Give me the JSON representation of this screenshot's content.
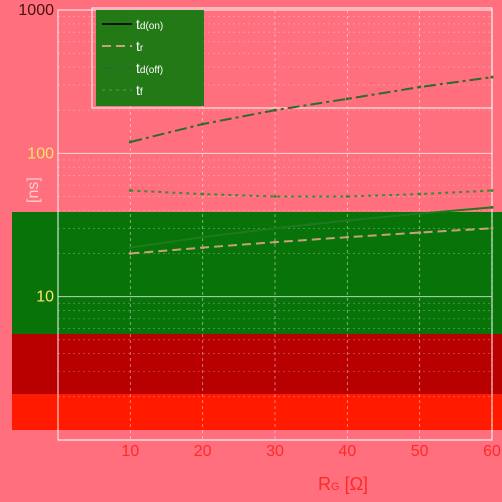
{
  "chart_data": {
    "type": "line",
    "title": "",
    "xlabel": "R",
    "xlabel_sub": "G",
    "xlabel_unit": " [Ω]",
    "ylabel": "[ns]",
    "x_ticks": [
      10,
      20,
      30,
      40,
      50,
      60
    ],
    "x_tick_labels": [
      "10",
      "20",
      "30",
      "40",
      "50",
      "60"
    ],
    "xlim": [
      0,
      60
    ],
    "y_scale": "log",
    "ylim": [
      1,
      1000
    ],
    "y_ticks": [
      1000,
      100,
      10
    ],
    "y_tick_labels": [
      "1000",
      "100",
      "10"
    ],
    "grid": true,
    "legend_position": "top-left",
    "legend_entries": [
      {
        "main": "t",
        "sub": "d(on)"
      },
      {
        "main": "t",
        "sub": "r"
      },
      {
        "main": "t",
        "sub": "d(off)"
      },
      {
        "main": "t",
        "sub": "f"
      }
    ],
    "series": [
      {
        "name": "td(on)",
        "style": "solid",
        "color": "#1e7a1e",
        "x": [
          10,
          20,
          30,
          40,
          50,
          60
        ],
        "y": [
          22,
          26,
          30,
          34,
          38,
          42
        ]
      },
      {
        "name": "tr",
        "style": "dashed",
        "color": "#c9a07a",
        "x": [
          10,
          20,
          30,
          40,
          50,
          60
        ],
        "y": [
          20,
          22,
          24,
          26,
          28,
          30
        ]
      },
      {
        "name": "td(off)",
        "style": "dash-dot",
        "color": "#2b6b2b",
        "x": [
          10,
          20,
          30,
          40,
          50,
          60
        ],
        "y": [
          120,
          160,
          200,
          240,
          290,
          340
        ]
      },
      {
        "name": "tf",
        "style": "dotted",
        "color": "#3a8a3a",
        "x": [
          10,
          20,
          30,
          40,
          50,
          60
        ],
        "y": [
          55,
          52,
          50,
          50,
          52,
          55
        ]
      }
    ],
    "colors": {
      "background": "#ff6f7d",
      "plot_bands": [
        "#087308",
        "#b80000",
        "#ff1a00"
      ],
      "axis_text": "#ff2a2a",
      "grid": "#ffffff"
    }
  }
}
